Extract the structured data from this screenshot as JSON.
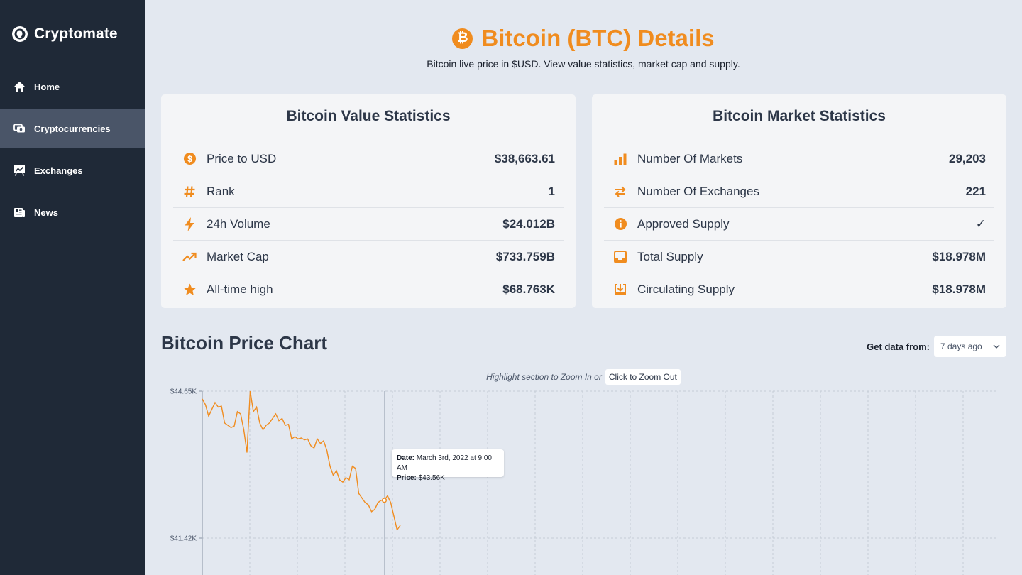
{
  "app": {
    "name": "Cryptomate"
  },
  "sidebar": {
    "items": [
      {
        "label": "Home",
        "icon": "home-icon",
        "active": false
      },
      {
        "label": "Cryptocurrencies",
        "icon": "coins-icon",
        "active": true
      },
      {
        "label": "Exchanges",
        "icon": "chart-board-icon",
        "active": false
      },
      {
        "label": "News",
        "icon": "newspaper-icon",
        "active": false
      }
    ]
  },
  "header": {
    "title": "Bitcoin (BTC) Details",
    "subtitle": "Bitcoin live price in $USD. View value statistics, market cap and supply."
  },
  "value_stats": {
    "title": "Bitcoin Value Statistics",
    "rows": [
      {
        "icon": "dollar-circle-icon",
        "label": "Price to USD",
        "value": "$38,663.61"
      },
      {
        "icon": "hash-icon",
        "label": "Rank",
        "value": "1"
      },
      {
        "icon": "lightning-icon",
        "label": "24h Volume",
        "value": "$24.012B"
      },
      {
        "icon": "trend-up-icon",
        "label": "Market Cap",
        "value": "$733.759B"
      },
      {
        "icon": "star-icon",
        "label": "All-time high",
        "value": "$68.763K"
      }
    ]
  },
  "market_stats": {
    "title": "Bitcoin Market Statistics",
    "rows": [
      {
        "icon": "bar-chart-icon",
        "label": "Number Of Markets",
        "value": "29,203"
      },
      {
        "icon": "swap-icon",
        "label": "Number Of Exchanges",
        "value": "221"
      },
      {
        "icon": "info-icon",
        "label": "Approved Supply",
        "value": "✓"
      },
      {
        "icon": "inbox-icon",
        "label": "Total Supply",
        "value": "$18.978M"
      },
      {
        "icon": "download-box-icon",
        "label": "Circulating Supply",
        "value": "$18.978M"
      }
    ]
  },
  "price_chart": {
    "title": "Bitcoin Price Chart",
    "range_label": "Get data from:",
    "range_value": "7 days ago",
    "zoom_hint": "Highlight section to Zoom In or",
    "zoom_out_label": "Click to Zoom Out",
    "tooltip": {
      "date_label": "Date:",
      "date_value": "March 3rd, 2022 at 9:00 AM",
      "price_label": "Price:",
      "price_value": "$43.56K"
    }
  },
  "colors": {
    "accent": "#f08c1f",
    "sidebar": "#1f2937",
    "background": "#e3e8f0"
  },
  "chart_data": {
    "type": "line",
    "y_ticks": [
      "$44.65K",
      "$41.42K"
    ],
    "ylim": [
      38200,
      44650
    ],
    "series": [
      {
        "values": [
          44480,
          44350,
          44100,
          44250,
          44400,
          44300,
          44320,
          43950,
          43900,
          43850,
          43880,
          44200,
          44150,
          43800,
          43300,
          44650,
          44200,
          44300,
          43950,
          43800,
          43900,
          43950,
          44050,
          44150,
          44000,
          44050,
          43900,
          43920,
          43600,
          43650,
          43600,
          43620,
          43580,
          43600,
          43450,
          43400,
          43600,
          43500,
          43560,
          43350,
          43000,
          42800,
          42900,
          42700,
          42650,
          42750,
          42700,
          43000,
          42950,
          42400,
          42300,
          42200,
          42150,
          42000,
          42050,
          42200,
          42250,
          42250,
          42350,
          42200,
          41900,
          41600,
          41700
        ]
      }
    ]
  }
}
